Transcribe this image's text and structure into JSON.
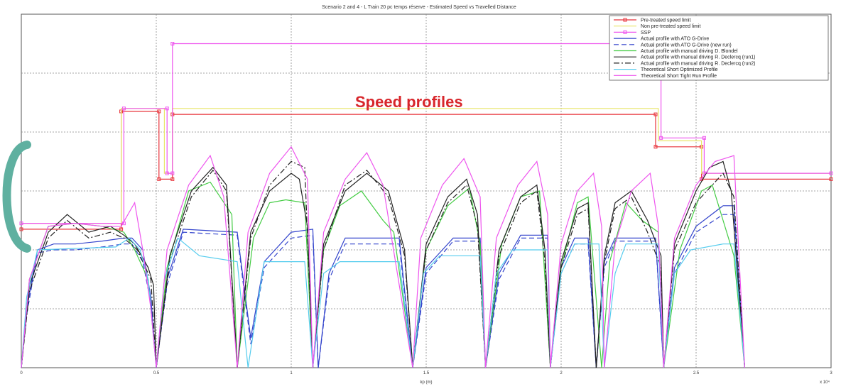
{
  "chart_data": {
    "type": "line",
    "title": "Scenario 2 and 4 - L Train 20 pc temps réserve - Estimated Speed vs Travelled Distance",
    "xlabel": "kp (m)",
    "x_exponent_label": "x 10⁴",
    "xlim": [
      0,
      3
    ],
    "ylim": [
      0,
      120
    ],
    "x_ticks": [
      0,
      0.5,
      1,
      1.5,
      2,
      2.5,
      3
    ],
    "x_tick_labels": [
      "0",
      "0.5",
      "1",
      "1.5",
      "2",
      "2.5",
      "3"
    ],
    "y_ticks": [
      0,
      20,
      40,
      60,
      80,
      100,
      120
    ],
    "grid": "on",
    "legend_position": "top-right",
    "annotation": "Speed profiles",
    "series": [
      {
        "name": "Pre-treated speed limit",
        "color": "#e8333a",
        "marker": "square",
        "x": [
          0,
          0.37,
          0.37,
          0.51,
          0.51,
          0.56,
          0.56,
          2.35,
          2.35,
          2.52,
          2.52,
          3.0
        ],
        "y": [
          47,
          47,
          87,
          87,
          64,
          64,
          86,
          86,
          75,
          75,
          64,
          64
        ]
      },
      {
        "name": "Non pre-treated speed limit",
        "color": "#e8e66a",
        "marker": "none",
        "x": [
          0,
          0.37,
          0.37,
          0.53,
          0.53,
          0.56,
          0.56,
          2.36,
          2.36,
          2.52,
          2.52,
          3.0
        ],
        "y": [
          49,
          49,
          88,
          88,
          66,
          66,
          88,
          88,
          77,
          77,
          66,
          66
        ]
      },
      {
        "name": "SSP",
        "color": "#ee55ee",
        "marker": "square",
        "x": [
          0,
          0.38,
          0.38,
          0.54,
          0.54,
          0.56,
          0.56,
          2.37,
          2.37,
          2.53,
          2.53,
          3.0
        ],
        "y": [
          49,
          49,
          88,
          88,
          66,
          66,
          110,
          110,
          78,
          78,
          66,
          66
        ]
      },
      {
        "name": "Actual profile with ATO G-Drive",
        "color": "#3344cc",
        "dash": "solid",
        "x": [
          0,
          0.02,
          0.06,
          0.12,
          0.2,
          0.3,
          0.38,
          0.41,
          0.45,
          0.48,
          0.5,
          0.54,
          0.6,
          0.8,
          0.85,
          0.9,
          1.0,
          1.08,
          1.1,
          1.14,
          1.2,
          1.3,
          1.4,
          1.45,
          1.5,
          1.6,
          1.7,
          1.72,
          1.77,
          1.85,
          1.95,
          1.96,
          2.0,
          2.05,
          2.1,
          2.13,
          2.16,
          2.2,
          2.35,
          2.38,
          2.42,
          2.5,
          2.6,
          2.64,
          2.68
        ],
        "y": [
          0,
          20,
          40,
          42,
          42,
          43,
          44,
          44,
          40,
          24,
          0,
          30,
          47,
          46,
          10,
          36,
          46,
          47,
          0,
          32,
          44,
          44,
          44,
          0,
          34,
          44,
          44,
          0,
          32,
          45,
          45,
          0,
          34,
          44,
          44,
          0,
          36,
          44,
          44,
          0,
          34,
          48,
          55,
          55,
          0
        ]
      },
      {
        "name": "Actual profile with ATO G-Drive (new run)",
        "color": "#3344cc",
        "dash": "dash",
        "x": [
          0,
          0.02,
          0.06,
          0.12,
          0.2,
          0.3,
          0.38,
          0.41,
          0.45,
          0.48,
          0.5,
          0.54,
          0.6,
          0.8,
          0.85,
          0.9,
          1.0,
          1.08,
          1.1,
          1.14,
          1.2,
          1.3,
          1.4,
          1.45,
          1.5,
          1.6,
          1.7,
          1.72,
          1.77,
          1.85,
          1.95,
          1.96,
          2.0,
          2.05,
          2.1,
          2.13,
          2.16,
          2.2,
          2.35,
          2.38,
          2.42,
          2.5,
          2.6,
          2.64,
          2.68
        ],
        "y": [
          0,
          18,
          39,
          40,
          40,
          41,
          42,
          42,
          36,
          22,
          0,
          28,
          46,
          45,
          8,
          34,
          44,
          45,
          0,
          30,
          42,
          42,
          42,
          0,
          32,
          43,
          43,
          0,
          30,
          44,
          44,
          0,
          32,
          42,
          42,
          0,
          34,
          43,
          43,
          0,
          32,
          46,
          52,
          52,
          0
        ]
      },
      {
        "name": "Actual profile with manual driving D. Blondel",
        "color": "#44cc44",
        "dash": "solid",
        "x": [
          0,
          0.03,
          0.1,
          0.2,
          0.3,
          0.38,
          0.42,
          0.47,
          0.5,
          0.54,
          0.62,
          0.7,
          0.78,
          0.8,
          0.86,
          0.92,
          0.98,
          1.05,
          1.08,
          1.12,
          1.18,
          1.26,
          1.34,
          1.38,
          1.45,
          1.5,
          1.58,
          1.66,
          1.7,
          1.72,
          1.78,
          1.85,
          1.92,
          1.94,
          1.96,
          2.0,
          2.06,
          2.1,
          2.15,
          2.18,
          2.24,
          2.3,
          2.36,
          2.38,
          2.44,
          2.52,
          2.56,
          2.6,
          2.64,
          2.68
        ],
        "y": [
          0,
          30,
          48,
          49,
          48,
          46,
          40,
          30,
          0,
          34,
          60,
          63,
          52,
          0,
          44,
          56,
          57,
          56,
          0,
          40,
          55,
          60,
          50,
          46,
          0,
          40,
          55,
          61,
          42,
          0,
          42,
          58,
          60,
          30,
          0,
          34,
          56,
          58,
          0,
          36,
          56,
          50,
          46,
          0,
          40,
          60,
          62,
          50,
          38,
          0
        ]
      },
      {
        "name": "Actual profile with manual driving R. Declercq (run1)",
        "color": "#222222",
        "dash": "solid",
        "x": [
          0,
          0.03,
          0.1,
          0.17,
          0.25,
          0.33,
          0.38,
          0.42,
          0.47,
          0.49,
          0.5,
          0.55,
          0.63,
          0.71,
          0.76,
          0.8,
          0.85,
          0.92,
          1.0,
          1.03,
          1.06,
          1.08,
          1.12,
          1.2,
          1.28,
          1.36,
          1.42,
          1.45,
          1.5,
          1.58,
          1.65,
          1.69,
          1.72,
          1.77,
          1.85,
          1.91,
          1.94,
          1.96,
          2.0,
          2.06,
          2.1,
          2.13,
          2.16,
          2.2,
          2.26,
          2.32,
          2.37,
          2.38,
          2.42,
          2.5,
          2.55,
          2.6,
          2.63,
          2.68
        ],
        "y": [
          0,
          28,
          46,
          52,
          46,
          48,
          45,
          42,
          34,
          28,
          0,
          38,
          60,
          68,
          62,
          0,
          46,
          60,
          66,
          64,
          48,
          0,
          42,
          60,
          66,
          60,
          40,
          0,
          42,
          58,
          64,
          52,
          0,
          40,
          58,
          62,
          40,
          0,
          36,
          54,
          56,
          0,
          38,
          56,
          60,
          50,
          38,
          0,
          42,
          60,
          68,
          70,
          60,
          0
        ]
      },
      {
        "name": "Actual profile with manual driving R. Declercq (run2)",
        "color": "#222222",
        "dash": "dashdot",
        "x": [
          0,
          0.03,
          0.1,
          0.17,
          0.25,
          0.33,
          0.38,
          0.43,
          0.48,
          0.5,
          0.55,
          0.63,
          0.71,
          0.76,
          0.8,
          0.85,
          0.92,
          1.0,
          1.05,
          1.08,
          1.12,
          1.2,
          1.28,
          1.36,
          1.42,
          1.45,
          1.5,
          1.58,
          1.65,
          1.69,
          1.72,
          1.77,
          1.85,
          1.91,
          1.94,
          1.96,
          2.0,
          2.06,
          2.1,
          2.13,
          2.16,
          2.2,
          2.26,
          2.32,
          2.37,
          2.38,
          2.42,
          2.5,
          2.56,
          2.6,
          2.64,
          2.68
        ],
        "y": [
          0,
          26,
          44,
          50,
          44,
          46,
          44,
          40,
          30,
          0,
          36,
          58,
          67,
          60,
          0,
          44,
          62,
          70,
          68,
          0,
          40,
          62,
          67,
          58,
          38,
          0,
          40,
          56,
          62,
          48,
          0,
          38,
          56,
          60,
          36,
          0,
          34,
          52,
          54,
          0,
          36,
          54,
          58,
          46,
          34,
          0,
          40,
          56,
          62,
          66,
          58,
          0
        ]
      },
      {
        "name": "Theoretical Short Optimized Profile",
        "color": "#55ccee",
        "dash": "solid",
        "x": [
          0,
          0.02,
          0.06,
          0.35,
          0.4,
          0.44,
          0.47,
          0.5,
          0.53,
          0.58,
          0.66,
          0.8,
          0.84,
          0.9,
          1.05,
          1.08,
          1.12,
          1.18,
          1.4,
          1.45,
          1.49,
          1.55,
          1.7,
          1.72,
          1.76,
          1.82,
          1.95,
          1.96,
          2.0,
          2.05,
          2.14,
          2.16,
          2.2,
          2.24,
          2.36,
          2.38,
          2.42,
          2.48,
          2.6,
          2.64,
          2.68
        ],
        "y": [
          0,
          24,
          40,
          41,
          44,
          40,
          30,
          0,
          30,
          44,
          38,
          36,
          0,
          36,
          36,
          0,
          32,
          36,
          36,
          0,
          32,
          38,
          38,
          0,
          32,
          40,
          40,
          0,
          32,
          42,
          42,
          0,
          32,
          42,
          42,
          0,
          32,
          40,
          42,
          42,
          0
        ]
      },
      {
        "name": "Theoretical Short Tight Run Profile",
        "color": "#ee55ee",
        "dash": "solid",
        "x": [
          0,
          0.03,
          0.1,
          0.2,
          0.3,
          0.37,
          0.42,
          0.45,
          0.48,
          0.5,
          0.54,
          0.62,
          0.7,
          0.75,
          0.8,
          0.84,
          0.92,
          1.0,
          1.06,
          1.08,
          1.12,
          1.2,
          1.28,
          1.34,
          1.45,
          1.48,
          1.56,
          1.64,
          1.7,
          1.72,
          1.76,
          1.84,
          1.91,
          1.95,
          1.96,
          2.0,
          2.06,
          2.12,
          2.15,
          2.16,
          2.2,
          2.26,
          2.33,
          2.36,
          2.38,
          2.42,
          2.5,
          2.57,
          2.64,
          2.68
        ],
        "y": [
          0,
          30,
          48,
          49,
          48,
          48,
          56,
          40,
          20,
          0,
          40,
          62,
          72,
          58,
          0,
          46,
          66,
          75,
          64,
          0,
          46,
          64,
          73,
          62,
          0,
          44,
          62,
          71,
          58,
          0,
          44,
          62,
          70,
          52,
          0,
          42,
          60,
          66,
          48,
          0,
          42,
          60,
          66,
          48,
          0,
          44,
          62,
          70,
          72,
          0
        ]
      }
    ]
  }
}
